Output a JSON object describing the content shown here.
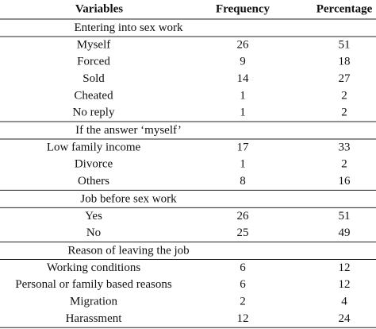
{
  "table": {
    "header": [
      "Variables",
      "Frequency",
      "Percentage"
    ],
    "sections": [
      {
        "title": "Entering into sex work",
        "rows": [
          [
            "Myself",
            26,
            51
          ],
          [
            "Forced",
            9,
            18
          ],
          [
            "Sold",
            14,
            27
          ],
          [
            "Cheated",
            1,
            2
          ],
          [
            "No reply",
            1,
            2
          ]
        ]
      },
      {
        "title": "If the answer ‘myself’",
        "rows": [
          [
            "Low family income",
            17,
            33
          ],
          [
            "Divorce",
            1,
            2
          ],
          [
            "Others",
            8,
            16
          ]
        ]
      },
      {
        "title": "Job before sex work",
        "rows": [
          [
            "Yes",
            26,
            51
          ],
          [
            "No",
            25,
            49
          ]
        ]
      },
      {
        "title": "Reason of leaving the job",
        "rows": [
          [
            "Working conditions",
            6,
            12
          ],
          [
            "Personal or family based reasons",
            6,
            12
          ],
          [
            "Migration",
            2,
            4
          ],
          [
            "Harassment",
            12,
            24
          ]
        ]
      }
    ]
  }
}
